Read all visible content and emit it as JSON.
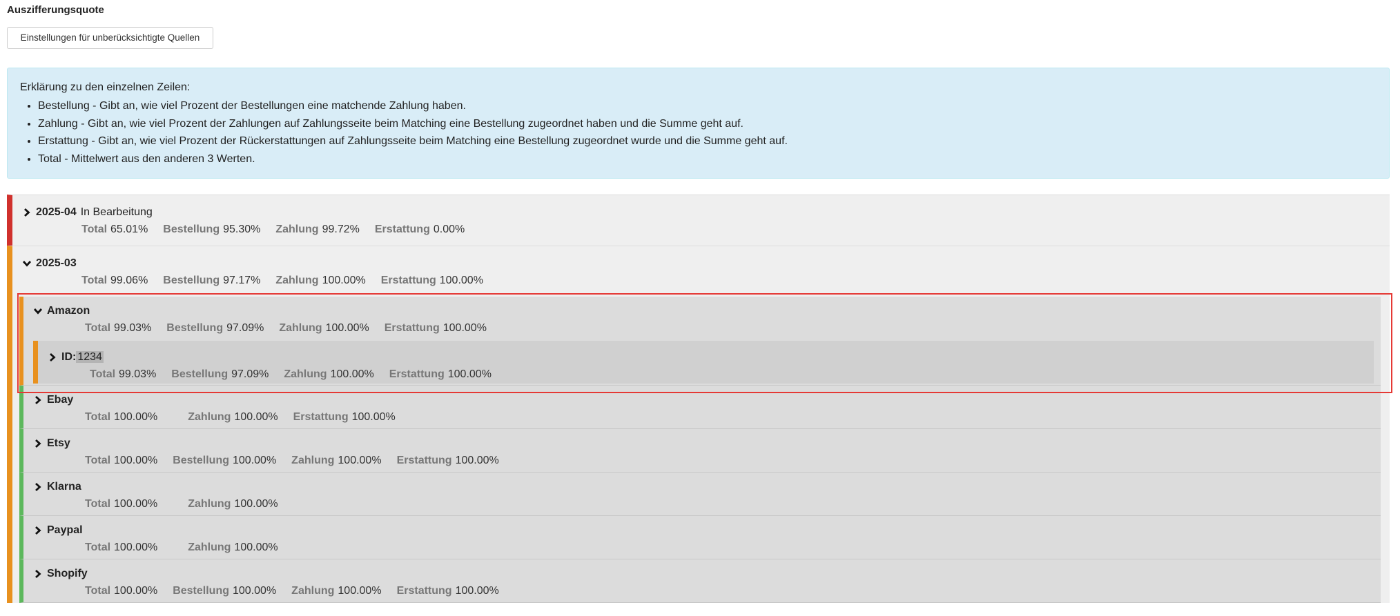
{
  "title": "Auszifferungsquote",
  "button": "Einstellungen für unberücksichtigte Quellen",
  "info": {
    "heading": "Erklärung zu den einzelnen Zeilen:",
    "items": [
      "Bestellung - Gibt an, wie viel Prozent der Bestellungen eine matchende Zahlung haben.",
      "Zahlung - Gibt an, wie viel Prozent der Zahlungen auf Zahlungsseite beim Matching eine Bestellung zugeordnet haben und die Summe geht auf.",
      "Erstattung - Gibt an, wie viel Prozent der Rückerstattungen auf Zahlungsseite beim Matching eine Bestellung zugeordnet wurde und die Summe geht auf.",
      "Total - Mittelwert aus den anderen 3 Werten."
    ]
  },
  "months": [
    {
      "name": "2025-04",
      "status": "In Bearbeitung",
      "color": "#d0312d",
      "expanded": false,
      "stats": [
        {
          "label": "Total",
          "value": "65.01%"
        },
        {
          "label": "Bestellung",
          "value": "95.30%"
        },
        {
          "label": "Zahlung",
          "value": "99.72%"
        },
        {
          "label": "Erstattung",
          "value": "0.00%"
        }
      ]
    },
    {
      "name": "2025-03",
      "color": "#e8911f",
      "expanded": true,
      "stats": [
        {
          "label": "Total",
          "value": "99.06%"
        },
        {
          "label": "Bestellung",
          "value": "97.17%"
        },
        {
          "label": "Zahlung",
          "value": "100.00%"
        },
        {
          "label": "Erstattung",
          "value": "100.00%"
        }
      ],
      "sources": [
        {
          "name": "Amazon",
          "color": "#e8911f",
          "expanded": true,
          "stats": [
            {
              "label": "Total",
              "value": "99.03%"
            },
            {
              "label": "Bestellung",
              "value": "97.09%"
            },
            {
              "label": "Zahlung",
              "value": "100.00%"
            },
            {
              "label": "Erstattung",
              "value": "100.00%"
            }
          ],
          "entries": [
            {
              "label": "ID:",
              "id": "1234",
              "color": "#e8911f",
              "stats": [
                {
                  "label": "Total",
                  "value": "99.03%"
                },
                {
                  "label": "Bestellung",
                  "value": "97.09%"
                },
                {
                  "label": "Zahlung",
                  "value": "100.00%"
                },
                {
                  "label": "Erstattung",
                  "value": "100.00%"
                }
              ]
            }
          ]
        },
        {
          "name": "Ebay",
          "color": "#5cb85c",
          "expanded": false,
          "stats": [
            {
              "label": "Total",
              "value": "100.00%"
            },
            {
              "label": "Zahlung",
              "value": "100.00%"
            },
            {
              "label": "Erstattung",
              "value": "100.00%"
            }
          ]
        },
        {
          "name": "Etsy",
          "color": "#5cb85c",
          "expanded": false,
          "stats": [
            {
              "label": "Total",
              "value": "100.00%"
            },
            {
              "label": "Bestellung",
              "value": "100.00%"
            },
            {
              "label": "Zahlung",
              "value": "100.00%"
            },
            {
              "label": "Erstattung",
              "value": "100.00%"
            }
          ]
        },
        {
          "name": "Klarna",
          "color": "#5cb85c",
          "expanded": false,
          "stats": [
            {
              "label": "Total",
              "value": "100.00%"
            },
            {
              "label": "Zahlung",
              "value": "100.00%"
            }
          ]
        },
        {
          "name": "Paypal",
          "color": "#5cb85c",
          "expanded": false,
          "stats": [
            {
              "label": "Total",
              "value": "100.00%"
            },
            {
              "label": "Zahlung",
              "value": "100.00%"
            }
          ]
        },
        {
          "name": "Shopify",
          "color": "#5cb85c",
          "expanded": false,
          "stats": [
            {
              "label": "Total",
              "value": "100.00%"
            },
            {
              "label": "Bestellung",
              "value": "100.00%"
            },
            {
              "label": "Zahlung",
              "value": "100.00%"
            },
            {
              "label": "Erstattung",
              "value": "100.00%"
            }
          ]
        }
      ]
    }
  ]
}
